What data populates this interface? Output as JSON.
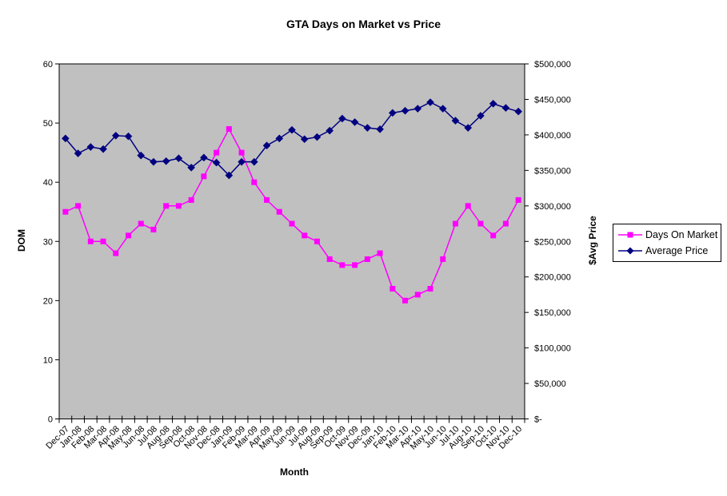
{
  "title": "GTA Days on Market vs Price",
  "axes": {
    "left": {
      "title": "DOM"
    },
    "right": {
      "title": "$Avg Price"
    },
    "bottom": {
      "title": "Month"
    }
  },
  "legend": {
    "position": "right"
  },
  "chart_data": {
    "type": "line",
    "title": "GTA Days on Market vs Price",
    "xlabel": "Month",
    "ylabel_left": "DOM",
    "ylabel_right": "$Avg Price",
    "grid": false,
    "plot_bg_color": "#c0c0c0",
    "axis_color": "#000000",
    "left_ylim": [
      0,
      60
    ],
    "left_tick_step": 10,
    "right_ylim": [
      0,
      500000
    ],
    "right_tick_step": 50000,
    "right_zero_label": "$-",
    "legend_position": "right",
    "categories": [
      "Dec-07",
      "Jan-08",
      "Feb-08",
      "Mar-08",
      "Apr-08",
      "May-08",
      "Jun-08",
      "Jul-08",
      "Aug-08",
      "Sep-08",
      "Oct-08",
      "Nov-08",
      "Dec-08",
      "Jan-09",
      "Feb-09",
      "Mar-09",
      "Apr-09",
      "May-09",
      "Jun-09",
      "Jul-09",
      "Aug-09",
      "Sep-09",
      "Oct-09",
      "Nov-09",
      "Dec-09",
      "Jan-10",
      "Feb-10",
      "Mar-10",
      "Apr-10",
      "May-10",
      "Jun-10",
      "Jul-10",
      "Aug-10",
      "Sep-10",
      "Oct-10",
      "Nov-10",
      "Dec-10"
    ],
    "series": [
      {
        "name": "Days On Market",
        "axis": "left",
        "color": "#ff00ff",
        "marker": "square",
        "values": [
          35,
          36,
          30,
          30,
          28,
          31,
          33,
          32,
          36,
          36,
          37,
          41,
          45,
          49,
          45,
          40,
          37,
          35,
          33,
          31,
          30,
          27,
          26,
          26,
          27,
          28,
          22,
          20,
          21,
          22,
          27,
          33,
          36,
          33,
          31,
          33,
          37
        ]
      },
      {
        "name": "Average Price",
        "axis": "right",
        "color": "#000080",
        "marker": "diamond",
        "values": [
          395000,
          374000,
          383000,
          380000,
          399000,
          398000,
          371000,
          362000,
          363000,
          367000,
          354000,
          368000,
          361000,
          343000,
          362000,
          362000,
          385000,
          395000,
          407000,
          394000,
          397000,
          406000,
          423000,
          418000,
          410000,
          408000,
          431000,
          434000,
          437000,
          446000,
          437000,
          420000,
          410000,
          427000,
          444000,
          438000,
          433000
        ]
      }
    ]
  }
}
